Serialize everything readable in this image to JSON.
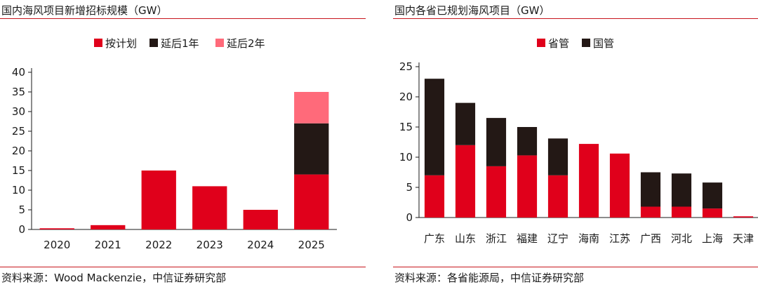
{
  "left": {
    "title": "国内海风项目新增招标规模（GW）",
    "source": "资料来源：Wood Mackenzie，中信证券研究部"
  },
  "right": {
    "title": "国内各省已规划海风项目（GW）",
    "source": "资料来源：各省能源局，中信证券研究部"
  },
  "chart_data": [
    {
      "type": "bar",
      "stacked": true,
      "categories": [
        "2020",
        "2021",
        "2022",
        "2023",
        "2024",
        "2025"
      ],
      "series": [
        {
          "name": "按计划",
          "color": "#e0001b",
          "values": [
            0.3,
            1.1,
            15,
            11,
            5,
            14
          ]
        },
        {
          "name": "延后1年",
          "color": "#231815",
          "values": [
            0,
            0,
            0,
            0,
            0,
            13
          ]
        },
        {
          "name": "延后2年",
          "color": "#ff6a7a",
          "values": [
            0,
            0,
            0,
            0,
            0,
            8
          ]
        }
      ],
      "ylim": [
        0,
        40
      ],
      "yticks": [
        "0",
        "5",
        "10",
        "15",
        "20",
        "25",
        "30",
        "35",
        "40"
      ],
      "legend_position": "top",
      "grid": false
    },
    {
      "type": "bar",
      "stacked": true,
      "categories": [
        "广东",
        "山东",
        "浙江",
        "福建",
        "辽宁",
        "海南",
        "江苏",
        "广西",
        "河北",
        "上海",
        "天津"
      ],
      "series": [
        {
          "name": "省管",
          "color": "#e0001b",
          "values": [
            7.0,
            12.0,
            8.5,
            10.3,
            7.0,
            12.2,
            10.6,
            1.8,
            1.8,
            1.5,
            0.2
          ]
        },
        {
          "name": "国管",
          "color": "#231815",
          "values": [
            16.0,
            7.0,
            8.0,
            4.7,
            6.1,
            0,
            0,
            5.7,
            5.5,
            4.3,
            0
          ]
        }
      ],
      "ylim": [
        0,
        25
      ],
      "yticks": [
        "0",
        "5",
        "10",
        "15",
        "20",
        "25"
      ],
      "legend_position": "top",
      "grid": false
    }
  ]
}
